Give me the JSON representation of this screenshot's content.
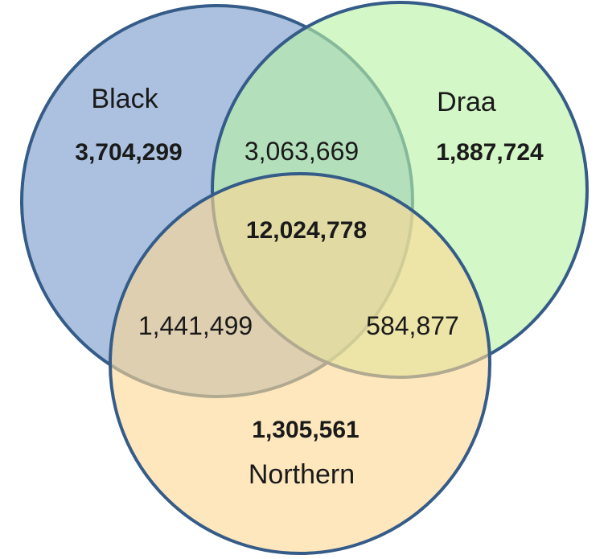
{
  "diagram": {
    "type": "venn-3",
    "sets": [
      {
        "id": "black",
        "label": "Black",
        "fill": "#94b0d6",
        "stroke": "#355c88"
      },
      {
        "id": "draa",
        "label": "Draa",
        "fill": "#b8f2a4",
        "stroke": "#355c88"
      },
      {
        "id": "northern",
        "label": "Northern",
        "fill": "#fdd894",
        "stroke": "#355c88"
      }
    ],
    "regions": {
      "black_only": "3,704,299",
      "draa_only": "1,887,724",
      "northern_only": "1,305,561",
      "black_draa": "3,063,669",
      "black_northern": "1,441,499",
      "draa_northern": "584,877",
      "all_three": "12,024,778"
    }
  }
}
